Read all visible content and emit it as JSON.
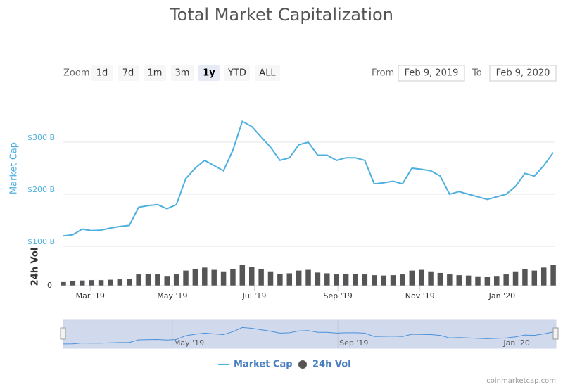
{
  "chart_data": {
    "type": "line",
    "title": "Total Market Capitalization",
    "zoom_label": "Zoom",
    "zoom_buttons": [
      "1d",
      "7d",
      "1m",
      "3m",
      "1y",
      "YTD",
      "ALL"
    ],
    "zoom_selected": "1y",
    "from_label": "From",
    "from_date": "Feb 9, 2019",
    "to_label": "To",
    "to_date": "Feb 9, 2020",
    "y_label": "Market Cap",
    "y2_label": "24h Vol",
    "x": [
      "2019-02-09",
      "2019-02-16",
      "2019-02-23",
      "2019-03-02",
      "2019-03-09",
      "2019-03-16",
      "2019-03-23",
      "2019-03-30",
      "2019-04-06",
      "2019-04-13",
      "2019-04-20",
      "2019-04-27",
      "2019-05-04",
      "2019-05-11",
      "2019-05-18",
      "2019-05-25",
      "2019-06-01",
      "2019-06-08",
      "2019-06-15",
      "2019-06-22",
      "2019-06-29",
      "2019-07-06",
      "2019-07-13",
      "2019-07-20",
      "2019-07-27",
      "2019-08-03",
      "2019-08-10",
      "2019-08-17",
      "2019-08-24",
      "2019-08-31",
      "2019-09-07",
      "2019-09-14",
      "2019-09-21",
      "2019-09-28",
      "2019-10-05",
      "2019-10-12",
      "2019-10-19",
      "2019-10-26",
      "2019-11-02",
      "2019-11-09",
      "2019-11-16",
      "2019-11-23",
      "2019-11-30",
      "2019-12-07",
      "2019-12-14",
      "2019-12-21",
      "2019-12-28",
      "2020-01-04",
      "2020-01-11",
      "2020-01-18",
      "2020-01-25",
      "2020-02-01",
      "2020-02-08"
    ],
    "series": [
      {
        "name": "Market Cap",
        "color": "#4fb0df",
        "values": [
          120,
          122,
          133,
          130,
          131,
          135,
          138,
          140,
          175,
          178,
          180,
          172,
          180,
          230,
          250,
          265,
          255,
          245,
          285,
          340,
          330,
          310,
          290,
          265,
          270,
          295,
          300,
          275,
          275,
          265,
          270,
          270,
          265,
          220,
          222,
          225,
          220,
          250,
          248,
          245,
          235,
          200,
          205,
          200,
          195,
          190,
          195,
          200,
          215,
          240,
          235,
          255,
          280
        ]
      },
      {
        "name": "24h Vol",
        "color": "#555555",
        "axis": "y2",
        "values": [
          10,
          12,
          14,
          15,
          15,
          16,
          17,
          18,
          30,
          32,
          30,
          26,
          30,
          40,
          45,
          48,
          42,
          38,
          45,
          55,
          50,
          45,
          38,
          32,
          33,
          40,
          42,
          35,
          33,
          30,
          32,
          32,
          30,
          28,
          27,
          28,
          30,
          40,
          42,
          38,
          34,
          30,
          28,
          27,
          25,
          24,
          26,
          30,
          38,
          45,
          40,
          48,
          55
        ]
      }
    ],
    "xlim": [
      "2019-02-09",
      "2020-02-09"
    ],
    "xticks": [
      {
        "value": "2019-03-01",
        "label": "Mar '19"
      },
      {
        "value": "2019-05-01",
        "label": "May '19"
      },
      {
        "value": "2019-07-01",
        "label": "Jul '19"
      },
      {
        "value": "2019-09-01",
        "label": "Sep '19"
      },
      {
        "value": "2019-11-01",
        "label": "Nov '19"
      },
      {
        "value": "2020-01-01",
        "label": "Jan '20"
      }
    ],
    "ylim": [
      100,
      400
    ],
    "yticks": [
      {
        "value": 100,
        "label": "$100 B"
      },
      {
        "value": 200,
        "label": "$200 B"
      },
      {
        "value": 300,
        "label": "$300 B"
      }
    ],
    "y2lim": [
      0,
      100
    ],
    "y2ticks": [
      0
    ],
    "navigator_ticks": [
      {
        "value": "2019-05-01",
        "label": "May '19"
      },
      {
        "value": "2019-09-01",
        "label": "Sep '19"
      },
      {
        "value": "2020-01-01",
        "label": "Jan '20"
      }
    ],
    "grid": true,
    "credit": "coinmarketcap.com"
  }
}
